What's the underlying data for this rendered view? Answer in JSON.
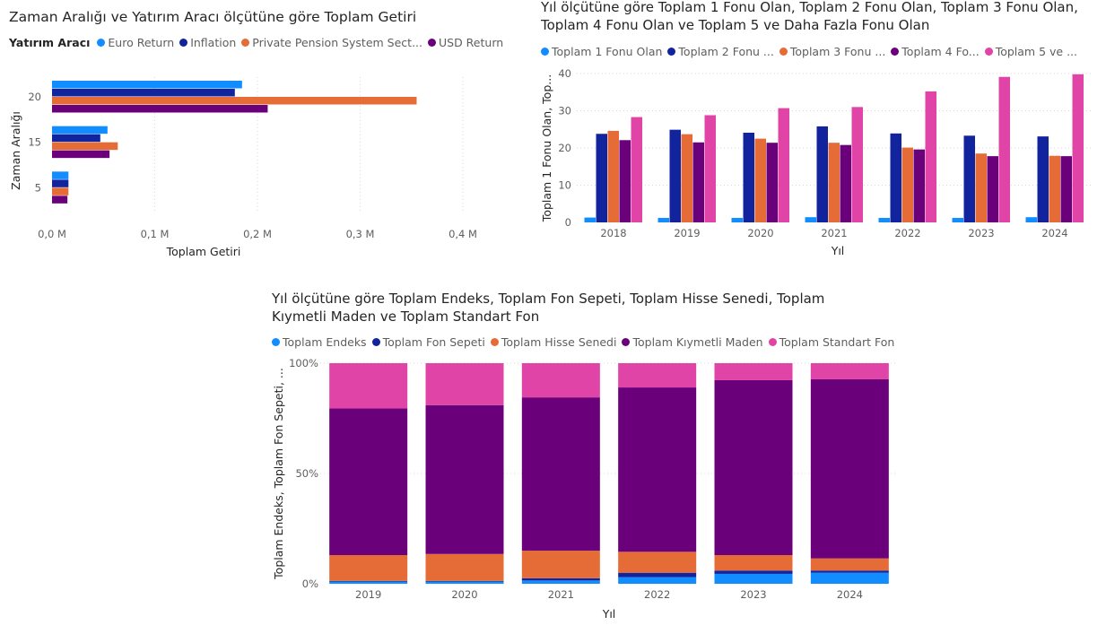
{
  "colors": {
    "light_blue": "#118DFF",
    "dark_blue": "#12239E",
    "orange": "#E66C37",
    "purple": "#6B007B",
    "pink": "#E044A7"
  },
  "chart_data": [
    {
      "type": "bar",
      "orientation": "horizontal",
      "title": "Zaman Aralığı ve Yatırım Aracı ölçütüne göre Toplam Getiri",
      "legend_title": "Yatırım Aracı",
      "legend_position": "top-left",
      "ylabel": "Zaman Aralığı",
      "xlabel": "Toplam Getiri",
      "categories": [
        "20",
        "15",
        "5"
      ],
      "xlim": [
        0,
        0.4
      ],
      "x_ticks": [
        "0,0 M",
        "0,1 M",
        "0,2 M",
        "0,3 M",
        "0,4 M"
      ],
      "grid": true,
      "series": [
        {
          "name": "Euro Return",
          "legend_label": "Euro Return",
          "color": "#118DFF",
          "values": [
            0.185,
            0.054,
            0.016
          ]
        },
        {
          "name": "Inflation",
          "legend_label": "Inflation",
          "color": "#12239E",
          "values": [
            0.178,
            0.047,
            0.016
          ]
        },
        {
          "name": "Private Pension System Sector",
          "legend_label": "Private Pension System Sect...",
          "color": "#E66C37",
          "values": [
            0.355,
            0.064,
            0.016
          ]
        },
        {
          "name": "USD Return",
          "legend_label": "USD Return",
          "color": "#6B007B",
          "values": [
            0.21,
            0.056,
            0.015
          ]
        }
      ]
    },
    {
      "type": "bar",
      "title_lines": [
        "Yıl ölçütüne göre Toplam 1 Fonu Olan, Toplam 2 Fonu Olan, Toplam 3 Fonu Olan,",
        "Toplam 4 Fonu Olan ve Toplam 5 ve Daha Fazla Fonu Olan"
      ],
      "legend_position": "top-left",
      "ylabel": "Toplam 1 Fonu Olan, Top...",
      "xlabel": "Yıl",
      "categories": [
        "2018",
        "2019",
        "2020",
        "2021",
        "2022",
        "2023",
        "2024"
      ],
      "ylim": [
        0,
        40
      ],
      "y_ticks": [
        "0",
        "10",
        "20",
        "30",
        "40"
      ],
      "grid": true,
      "series": [
        {
          "name": "Toplam 1 Fonu Olan",
          "legend_label": "Toplam 1 Fonu Olan",
          "color": "#118DFF",
          "values": [
            1.3,
            1.2,
            1.2,
            1.4,
            1.2,
            1.2,
            1.4
          ]
        },
        {
          "name": "Toplam 2 Fonu Olan",
          "legend_label": "Toplam 2 Fonu ...",
          "color": "#12239E",
          "values": [
            23.8,
            24.9,
            24.1,
            25.8,
            23.9,
            23.3,
            23.1
          ]
        },
        {
          "name": "Toplam 3 Fonu Olan",
          "legend_label": "Toplam 3 Fonu ...",
          "color": "#E66C37",
          "values": [
            24.6,
            23.7,
            22.5,
            21.4,
            20.1,
            18.5,
            17.9
          ]
        },
        {
          "name": "Toplam 4 Fonu Olan",
          "legend_label": "Toplam 4 Fo...",
          "color": "#6B007B",
          "values": [
            22.1,
            21.5,
            21.4,
            20.8,
            19.6,
            17.8,
            17.8
          ]
        },
        {
          "name": "Toplam 5 ve Daha Fazla Fonu Olan",
          "legend_label": "Toplam 5 ve ...",
          "color": "#E044A7",
          "values": [
            28.3,
            28.8,
            30.7,
            31.0,
            35.2,
            39.1,
            39.8
          ]
        }
      ]
    },
    {
      "type": "bar",
      "stacked": "percent",
      "title_lines": [
        "Yıl ölçütüne göre Toplam Endeks, Toplam Fon Sepeti, Toplam Hisse Senedi, Toplam",
        "Kıymetli Maden ve Toplam Standart Fon"
      ],
      "legend_position": "top-left",
      "ylabel": "Toplam Endeks, Toplam Fon Sepeti, ...",
      "xlabel": "Yıl",
      "categories": [
        "2019",
        "2020",
        "2021",
        "2022",
        "2023",
        "2024"
      ],
      "ylim": [
        0,
        100
      ],
      "y_ticks": [
        "0%",
        "50%",
        "100%"
      ],
      "series": [
        {
          "name": "Toplam Endeks",
          "legend_label": "Toplam Endeks",
          "color": "#118DFF",
          "values": [
            1.0,
            1.0,
            1.5,
            3.0,
            4.5,
            5.0
          ]
        },
        {
          "name": "Toplam Fon Sepeti",
          "legend_label": "Toplam Fon Sepeti",
          "color": "#12239E",
          "values": [
            0.3,
            0.3,
            1.0,
            2.0,
            1.5,
            1.0
          ]
        },
        {
          "name": "Toplam Hisse Senedi",
          "legend_label": "Toplam Hisse Senedi",
          "color": "#E66C37",
          "values": [
            11.7,
            12.2,
            12.5,
            9.5,
            7.0,
            5.5
          ]
        },
        {
          "name": "Toplam Kıymetli Maden",
          "legend_label": "Toplam Kıymetli Maden",
          "color": "#6B007B",
          "values": [
            66.5,
            67.5,
            69.5,
            74.5,
            79.3,
            81.2
          ]
        },
        {
          "name": "Toplam Standart Fon",
          "legend_label": "Toplam Standart Fon",
          "color": "#E044A7",
          "values": [
            20.5,
            19.0,
            15.5,
            11.0,
            7.7,
            7.3
          ]
        }
      ]
    }
  ]
}
